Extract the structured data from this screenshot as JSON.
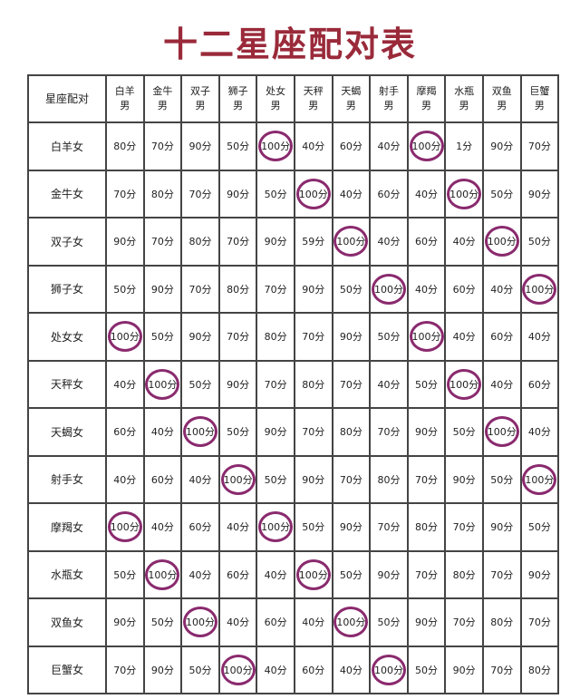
{
  "title": "十二星座配对表",
  "corner": "星座配对",
  "circle_color": "#8a2a6e",
  "columns": [
    "白羊\n男",
    "金牛\n男",
    "双子\n男",
    "狮子\n男",
    "处女\n男",
    "天秤\n男",
    "天蝎\n男",
    "射手\n男",
    "摩羯\n男",
    "水瓶\n男",
    "双鱼\n男",
    "巨蟹\n男"
  ],
  "rows": [
    {
      "label": "白羊女",
      "values": [
        "80分",
        "70分",
        "90分",
        "50分",
        "100分",
        "40分",
        "60分",
        "40分",
        "100分",
        "1分",
        "90分",
        "70分"
      ]
    },
    {
      "label": "金牛女",
      "values": [
        "70分",
        "80分",
        "70分",
        "90分",
        "50分",
        "100分",
        "40分",
        "60分",
        "40分",
        "100分",
        "50分",
        "90分"
      ]
    },
    {
      "label": "双子女",
      "values": [
        "90分",
        "70分",
        "80分",
        "70分",
        "90分",
        "59分",
        "100分",
        "40分",
        "60分",
        "40分",
        "100分",
        "50分"
      ]
    },
    {
      "label": "狮子女",
      "values": [
        "50分",
        "90分",
        "70分",
        "80分",
        "70分",
        "90分",
        "50分",
        "100分",
        "40分",
        "60分",
        "40分",
        "100分"
      ]
    },
    {
      "label": "处女女",
      "values": [
        "100分",
        "50分",
        "90分",
        "70分",
        "80分",
        "70分",
        "90分",
        "50分",
        "100分",
        "40分",
        "60分",
        "40分"
      ]
    },
    {
      "label": "天秤女",
      "values": [
        "40分",
        "100分",
        "50分",
        "90分",
        "70分",
        "80分",
        "70分",
        "40分",
        "50分",
        "100分",
        "40分",
        "60分"
      ]
    },
    {
      "label": "天蝎女",
      "values": [
        "60分",
        "40分",
        "100分",
        "50分",
        "90分",
        "70分",
        "80分",
        "70分",
        "90分",
        "50分",
        "100分",
        "40分"
      ]
    },
    {
      "label": "射手女",
      "values": [
        "40分",
        "60分",
        "40分",
        "100分",
        "50分",
        "90分",
        "70分",
        "80分",
        "70分",
        "90分",
        "50分",
        "100分"
      ]
    },
    {
      "label": "摩羯女",
      "values": [
        "100分",
        "40分",
        "60分",
        "40分",
        "100分",
        "50分",
        "90分",
        "70分",
        "80分",
        "70分",
        "90分",
        "50分"
      ]
    },
    {
      "label": "水瓶女",
      "values": [
        "50分",
        "100分",
        "40分",
        "60分",
        "40分",
        "100分",
        "50分",
        "90分",
        "70分",
        "80分",
        "70分",
        "90分"
      ]
    },
    {
      "label": "双鱼女",
      "values": [
        "90分",
        "50分",
        "100分",
        "40分",
        "60分",
        "40分",
        "100分",
        "50分",
        "90分",
        "70分",
        "80分",
        "70分"
      ]
    },
    {
      "label": "巨蟹女",
      "values": [
        "70分",
        "90分",
        "50分",
        "100分",
        "40分",
        "60分",
        "40分",
        "100分",
        "50分",
        "90分",
        "70分",
        "80分"
      ]
    }
  ]
}
